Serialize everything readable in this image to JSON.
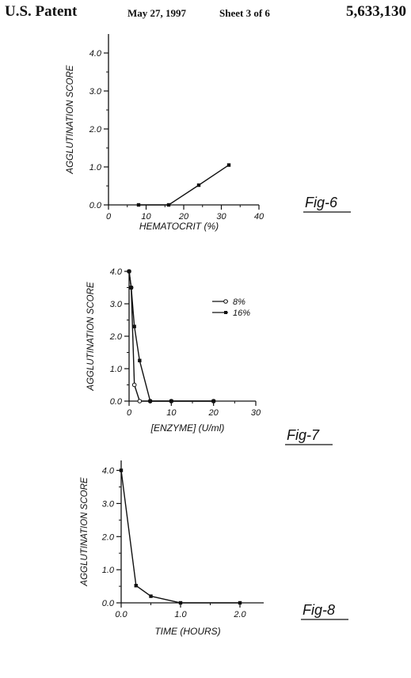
{
  "header": {
    "left": "U.S. Patent",
    "date": "May 27, 1997",
    "sheet": "Sheet 3 of 6",
    "patent_number": "5,633,130"
  },
  "chart_data": [
    {
      "type": "line",
      "figure_label": "Fig-6",
      "xlabel": "HEMATOCRIT (%)",
      "ylabel": "AGGLUTINATION SCORE",
      "xlim": [
        0,
        40
      ],
      "ylim": [
        0,
        4.5
      ],
      "x_ticks": [
        "0",
        "10",
        "20",
        "30",
        "40"
      ],
      "y_ticks": [
        "0.0",
        "1.0",
        "2.0",
        "3.0",
        "4.0"
      ],
      "series": [
        {
          "name": "",
          "x": [
            8,
            16,
            24,
            32
          ],
          "y": [
            0.0,
            0.0,
            0.52,
            1.05
          ]
        }
      ]
    },
    {
      "type": "line",
      "figure_label": "Fig-7",
      "xlabel": "[ENZYME] (U/ml)",
      "ylabel": "AGGLUTINATION SCORE",
      "xlim": [
        0,
        30
      ],
      "ylim": [
        0,
        4.0
      ],
      "x_ticks": [
        "0",
        "10",
        "20",
        "30"
      ],
      "y_ticks": [
        "0.0",
        "1.0",
        "2.0",
        "3.0",
        "4.0"
      ],
      "legend": "top-right",
      "series": [
        {
          "name": "8%",
          "marker": "open-circle",
          "x": [
            0,
            0.5,
            1.25,
            2.5,
            5,
            10,
            20
          ],
          "y": [
            4.0,
            3.5,
            0.5,
            0.0,
            0.0,
            0.0,
            0.0
          ]
        },
        {
          "name": "16%",
          "marker": "filled",
          "x": [
            0,
            0.5,
            1.25,
            2.5,
            5,
            10,
            20
          ],
          "y": [
            4.0,
            3.5,
            2.3,
            1.25,
            0.0,
            0.0,
            0.0
          ]
        }
      ]
    },
    {
      "type": "line",
      "figure_label": "Fig-8",
      "xlabel": "TIME (HOURS)",
      "ylabel": "AGGLUTINATION SCORE",
      "xlim": [
        0,
        2.4
      ],
      "ylim": [
        0,
        4.3
      ],
      "x_ticks": [
        "0.0",
        "1.0",
        "2.0"
      ],
      "y_ticks": [
        "0.0",
        "1.0",
        "2.0",
        "3.0",
        "4.0"
      ],
      "series": [
        {
          "name": "",
          "x": [
            0,
            0.25,
            0.5,
            1.0,
            2.0
          ],
          "y": [
            4.0,
            0.52,
            0.2,
            0.0,
            0.0
          ]
        }
      ]
    }
  ]
}
